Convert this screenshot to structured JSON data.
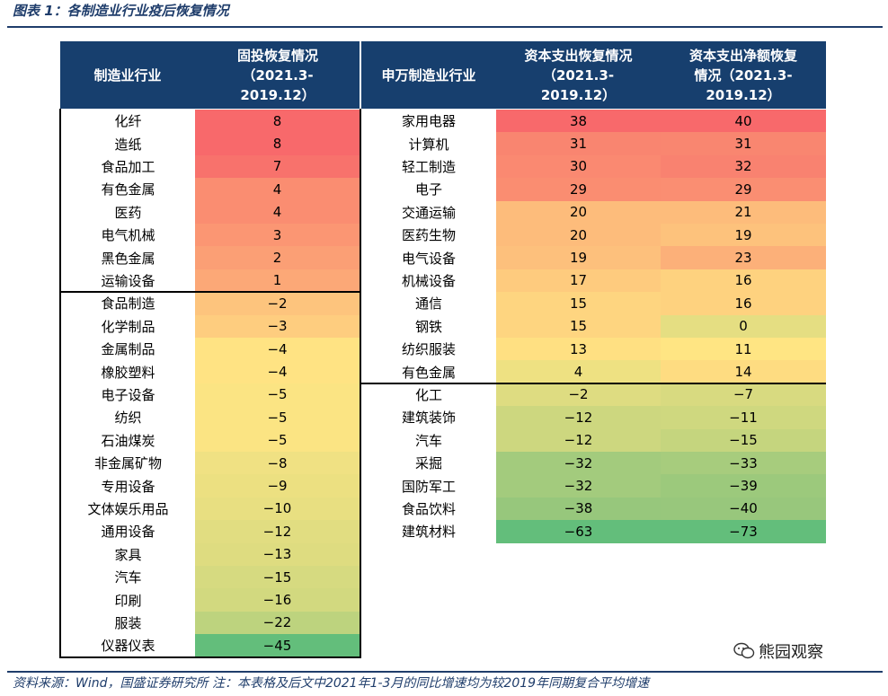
{
  "caption": "图表 1：各制造业行业疫后恢复情况",
  "headers": {
    "left_industry": "制造业行业",
    "left_fixed_investment": "固投恢复情况\n（2021.3-\n2019.12）",
    "right_industry": "申万制造业行业",
    "right_capex": "资本支出恢复情况\n（2021.3-\n2019.12）",
    "right_net_capex": "资本支出净额恢复\n情况（2021.3-\n2019.12）"
  },
  "left_table": [
    {
      "industry": "化纤",
      "value": "8",
      "color": "#f8696b"
    },
    {
      "industry": "造纸",
      "value": "8",
      "color": "#f8696b"
    },
    {
      "industry": "食品加工",
      "value": "7",
      "color": "#f8726c"
    },
    {
      "industry": "有色金属",
      "value": "4",
      "color": "#fa8d71"
    },
    {
      "industry": "医药",
      "value": "4",
      "color": "#fa8d71"
    },
    {
      "industry": "电气机械",
      "value": "3",
      "color": "#fb9673"
    },
    {
      "industry": "黑色金属",
      "value": "2",
      "color": "#fb9f75"
    },
    {
      "industry": "运输设备",
      "value": "1",
      "color": "#fca877"
    },
    {
      "industry": "食品制造",
      "value": "−2",
      "color": "#fdc47d"
    },
    {
      "industry": "化学制品",
      "value": "−3",
      "color": "#fecd7f"
    },
    {
      "industry": "金属制品",
      "value": "−4",
      "color": "#ffe383"
    },
    {
      "industry": "橡胶塑料",
      "value": "−4",
      "color": "#ffe383"
    },
    {
      "industry": "电子设备",
      "value": "−5",
      "color": "#fbe483"
    },
    {
      "industry": "纺织",
      "value": "−5",
      "color": "#fbe483"
    },
    {
      "industry": "石油煤炭",
      "value": "−5",
      "color": "#fbe483"
    },
    {
      "industry": "非金属矿物",
      "value": "−8",
      "color": "#f0e183"
    },
    {
      "industry": "专用设备",
      "value": "−9",
      "color": "#ece081"
    },
    {
      "industry": "文体娱乐用品",
      "value": "−10",
      "color": "#e8df81"
    },
    {
      "industry": "通用设备",
      "value": "−12",
      "color": "#e1dd81"
    },
    {
      "industry": "家具",
      "value": "−13",
      "color": "#dedc80"
    },
    {
      "industry": "汽车",
      "value": "−15",
      "color": "#d6da80"
    },
    {
      "industry": "印刷",
      "value": "−16",
      "color": "#d2d97f"
    },
    {
      "industry": "服装",
      "value": "−22",
      "color": "#bdd37e"
    },
    {
      "industry": "仪器仪表",
      "value": "−45",
      "color": "#63be7b"
    }
  ],
  "right_table": [
    {
      "industry": "家用电器",
      "capex": "38",
      "capex_color": "#f8696b",
      "net": "40",
      "net_color": "#f8696b"
    },
    {
      "industry": "计算机",
      "capex": "31",
      "capex_color": "#f98570",
      "net": "31",
      "net_color": "#f98670"
    },
    {
      "industry": "轻工制造",
      "capex": "30",
      "capex_color": "#fa8971",
      "net": "32",
      "net_color": "#f98270"
    },
    {
      "industry": "电子",
      "capex": "29",
      "capex_color": "#fa8d71",
      "net": "29",
      "net_color": "#fa8e72"
    },
    {
      "industry": "交通运输",
      "capex": "20",
      "capex_color": "#fdbc7b",
      "net": "21",
      "net_color": "#fdbc7b"
    },
    {
      "industry": "医药生物",
      "capex": "20",
      "capex_color": "#fdbc7b",
      "net": "19",
      "net_color": "#fdc27c"
    },
    {
      "industry": "电气设备",
      "capex": "19",
      "capex_color": "#fdc07c",
      "net": "23",
      "net_color": "#fcb079"
    },
    {
      "industry": "机械设备",
      "capex": "17",
      "capex_color": "#fecb7e",
      "net": "16",
      "net_color": "#fed27f"
    },
    {
      "industry": "通信",
      "capex": "15",
      "capex_color": "#fed580",
      "net": "16",
      "net_color": "#fed27f"
    },
    {
      "industry": "钢铁",
      "capex": "15",
      "capex_color": "#fed580",
      "net": "0",
      "net_color": "#e5de82"
    },
    {
      "industry": "纺织服装",
      "capex": "13",
      "capex_color": "#ffe082",
      "net": "11",
      "net_color": "#ffe583"
    },
    {
      "industry": "有色金属",
      "capex": "4",
      "capex_color": "#eee182",
      "net": "14",
      "net_color": "#fedc81"
    },
    {
      "industry": "化工",
      "capex": "−2",
      "capex_color": "#dedc81",
      "net": "−7",
      "net_color": "#d8da80"
    },
    {
      "industry": "建筑装饰",
      "capex": "−12",
      "capex_color": "#cdd77f",
      "net": "−11",
      "net_color": "#cfd87f"
    },
    {
      "industry": "汽车",
      "capex": "−12",
      "capex_color": "#cdd77f",
      "net": "−15",
      "net_color": "#c5d57e"
    },
    {
      "industry": "采掘",
      "capex": "−32",
      "capex_color": "#a3cb7d",
      "net": "−33",
      "net_color": "#a7cc7d"
    },
    {
      "industry": "国防军工",
      "capex": "−32",
      "capex_color": "#a3cb7d",
      "net": "−39",
      "net_color": "#9cc97c"
    },
    {
      "industry": "食品饮料",
      "capex": "−38",
      "capex_color": "#97c77c",
      "net": "−40",
      "net_color": "#98c77c"
    },
    {
      "industry": "建筑材料",
      "capex": "−63",
      "capex_color": "#63be7b",
      "net": "−73",
      "net_color": "#63be7b"
    }
  ],
  "source": "资料来源：Wind，国盛证券研究所 注：本表格及后文中2021年1-3月的同比增速均为较2019年同期复合平均增速",
  "watermark": "熊园观察"
}
